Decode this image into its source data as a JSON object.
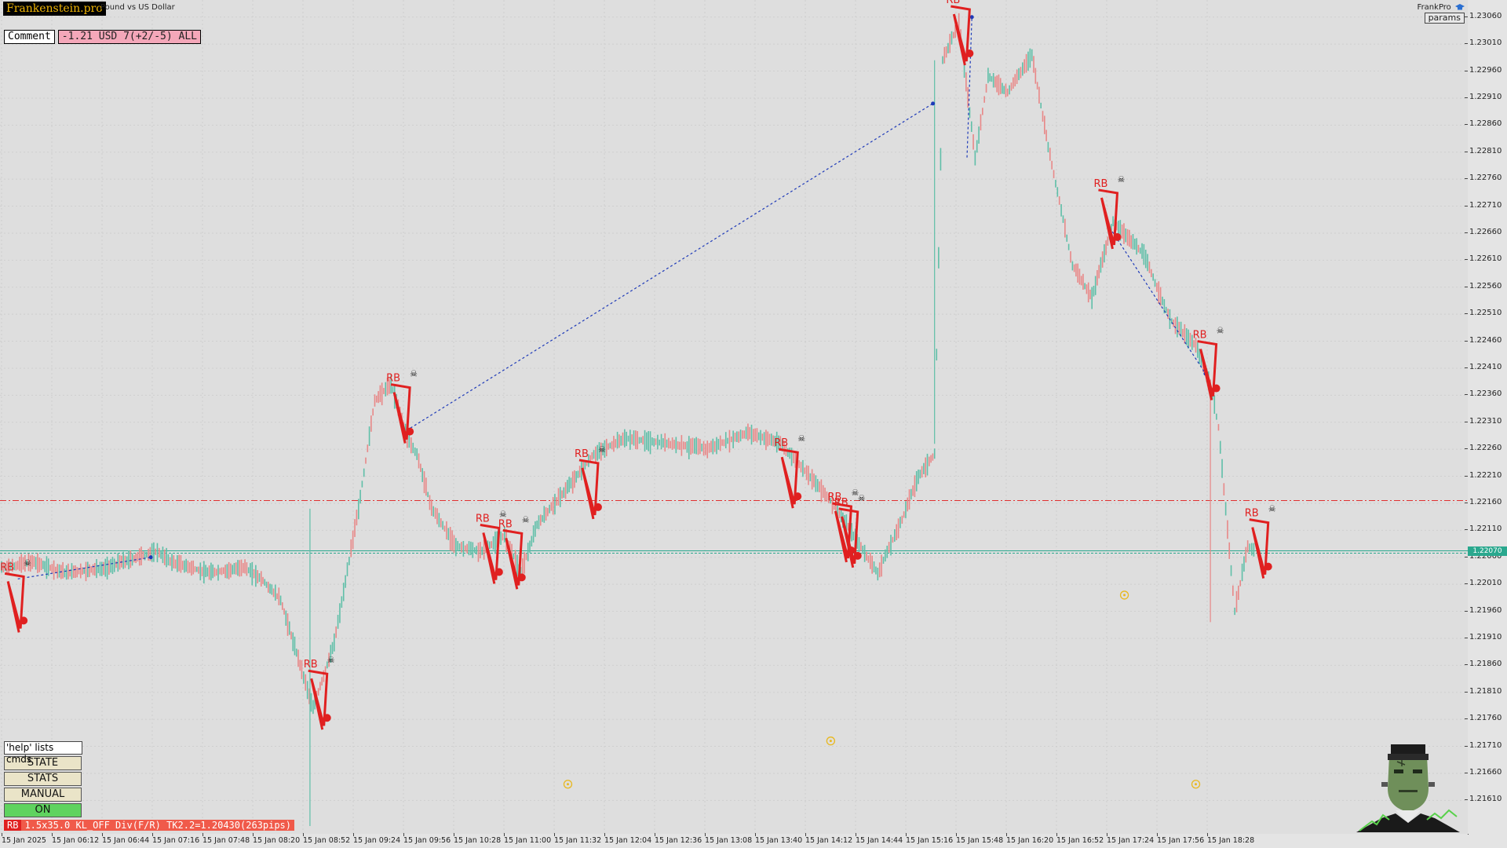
{
  "brand": "Frankenstein.pro",
  "symbol_desc": "Pound vs US Dollar",
  "comment": {
    "label": "Comment",
    "value": "-1.21 USD 7(+2/-5) ALL"
  },
  "top_right": {
    "account": "FrankPro",
    "cap_icon": "graduation-cap-icon",
    "params_label": "params"
  },
  "commands": {
    "help_text": "'help' lists cmds",
    "buttons": [
      "STATE",
      "STATS",
      "MANUAL",
      "ON"
    ]
  },
  "status": {
    "tag": "RB",
    "text": "1.5x35.0 KL_OFF Div(F/R) TK2.2=1.20430(263pips)"
  },
  "price_axis": {
    "ticks": [
      "1.23060",
      "1.23010",
      "1.22960",
      "1.22910",
      "1.22860",
      "1.22810",
      "1.22760",
      "1.22710",
      "1.22660",
      "1.22610",
      "1.22560",
      "1.22510",
      "1.22460",
      "1.22410",
      "1.22360",
      "1.22310",
      "1.22260",
      "1.22210",
      "1.22160",
      "1.22110",
      "1.22060",
      "1.22010",
      "1.21960",
      "1.21910",
      "1.21860",
      "1.21810",
      "1.21760",
      "1.21710",
      "1.21660",
      "1.21610"
    ],
    "current_price": "1.22070"
  },
  "time_axis": {
    "ticks": [
      "15 Jan 2025",
      "15 Jan 06:12",
      "15 Jan 06:44",
      "15 Jan 07:16",
      "15 Jan 07:48",
      "15 Jan 08:20",
      "15 Jan 08:52",
      "15 Jan 09:24",
      "15 Jan 09:56",
      "15 Jan 10:28",
      "15 Jan 11:00",
      "15 Jan 11:32",
      "15 Jan 12:04",
      "15 Jan 12:36",
      "15 Jan 13:08",
      "15 Jan 13:40",
      "15 Jan 14:12",
      "15 Jan 14:44",
      "15 Jan 15:16",
      "15 Jan 15:48",
      "15 Jan 16:20",
      "15 Jan 16:52",
      "15 Jan 17:24",
      "15 Jan 17:56",
      "15 Jan 18:28"
    ]
  },
  "levels": {
    "red_line": 1.22165,
    "green_line": 1.22072
  },
  "chart_data": {
    "type": "line",
    "x": [
      "2025-01-15 05:40",
      "2025-01-15 06:00",
      "2025-01-15 06:20",
      "2025-01-15 06:44",
      "2025-01-15 07:05",
      "2025-01-15 07:16",
      "2025-01-15 07:25",
      "2025-01-15 07:48",
      "2025-01-15 08:10",
      "2025-01-15 08:20",
      "2025-01-15 08:32",
      "2025-01-15 08:45",
      "2025-01-15 08:52",
      "2025-01-15 09:05",
      "2025-01-15 09:20",
      "2025-01-15 09:30",
      "2025-01-15 09:40",
      "2025-01-15 09:50",
      "2025-01-15 09:56",
      "2025-01-15 10:05",
      "2025-01-15 10:20",
      "2025-01-15 10:35",
      "2025-01-15 10:50",
      "2025-01-15 11:00",
      "2025-01-15 11:10",
      "2025-01-15 11:32",
      "2025-01-15 11:45",
      "2025-01-15 12:04",
      "2025-01-15 12:30",
      "2025-01-15 12:55",
      "2025-01-15 13:20",
      "2025-01-15 13:40",
      "2025-01-15 13:55",
      "2025-01-15 14:12",
      "2025-01-15 14:25",
      "2025-01-15 14:40",
      "2025-01-15 14:55",
      "2025-01-15 15:05",
      "2025-01-15 15:15",
      "2025-01-15 15:20",
      "2025-01-15 15:30",
      "2025-01-15 15:40",
      "2025-01-15 15:48",
      "2025-01-15 16:00",
      "2025-01-15 16:15",
      "2025-01-15 16:25",
      "2025-01-15 16:40",
      "2025-01-15 16:52",
      "2025-01-15 17:05",
      "2025-01-15 17:24",
      "2025-01-15 17:40",
      "2025-01-15 17:56",
      "2025-01-15 18:05",
      "2025-01-15 18:10",
      "2025-01-15 18:20",
      "2025-01-15 18:28",
      "2025-01-15 18:33"
    ],
    "series": [
      {
        "values": [
          1.2204,
          1.2205,
          1.2203,
          1.2204,
          1.2206,
          1.2207,
          1.2205,
          1.2203,
          1.2204,
          1.2202,
          1.2198,
          1.2185,
          1.2178,
          1.219,
          1.2215,
          1.2235,
          1.2238,
          1.2228,
          1.2225,
          1.2215,
          1.2208,
          1.2207,
          1.221,
          1.2203,
          1.2212,
          1.222,
          1.2225,
          1.2228,
          1.2227,
          1.2226,
          1.2229,
          1.2227,
          1.2222,
          1.2216,
          1.221,
          1.2203,
          1.2213,
          1.2221,
          1.2225,
          1.2298,
          1.2305,
          1.228,
          1.2295,
          1.2292,
          1.2299,
          1.2282,
          1.226,
          1.2254,
          1.2268,
          1.2262,
          1.225,
          1.2245,
          1.2238,
          1.223,
          1.2196,
          1.2208,
          1.2207
        ]
      }
    ],
    "ylim": [
      1.2158,
      1.2308
    ],
    "grid": true
  },
  "markers": {
    "rb_label": "RB",
    "items": [
      {
        "t": "2025-01-15 05:42",
        "p": 1.2203
      },
      {
        "t": "2025-01-15 08:49",
        "p": 1.2185
      },
      {
        "t": "2025-01-15 09:40",
        "p": 1.2238
      },
      {
        "t": "2025-01-15 10:35",
        "p": 1.2212
      },
      {
        "t": "2025-01-15 10:49",
        "p": 1.2211
      },
      {
        "t": "2025-01-15 11:36",
        "p": 1.2224
      },
      {
        "t": "2025-01-15 13:39",
        "p": 1.2226
      },
      {
        "t": "2025-01-15 14:12",
        "p": 1.2216
      },
      {
        "t": "2025-01-15 14:16",
        "p": 1.2215
      },
      {
        "t": "2025-01-15 15:25",
        "p": 1.2308
      },
      {
        "t": "2025-01-15 16:56",
        "p": 1.2274
      },
      {
        "t": "2025-01-15 17:57",
        "p": 1.2246
      },
      {
        "t": "2025-01-15 18:29",
        "p": 1.2213
      }
    ]
  },
  "gold_markers": [
    {
      "t": "2025-01-15 11:29",
      "p": 1.2164
    },
    {
      "t": "2025-01-15 14:11",
      "p": 1.2172
    },
    {
      "t": "2025-01-15 17:12",
      "p": 1.2199
    },
    {
      "t": "2025-01-15 17:56",
      "p": 1.2164
    }
  ],
  "icons": {
    "brand_logo": "frankenstein-avatar-icon",
    "skull": "skull-icon",
    "exit": "exit-circle-icon",
    "target": "target-icon"
  }
}
